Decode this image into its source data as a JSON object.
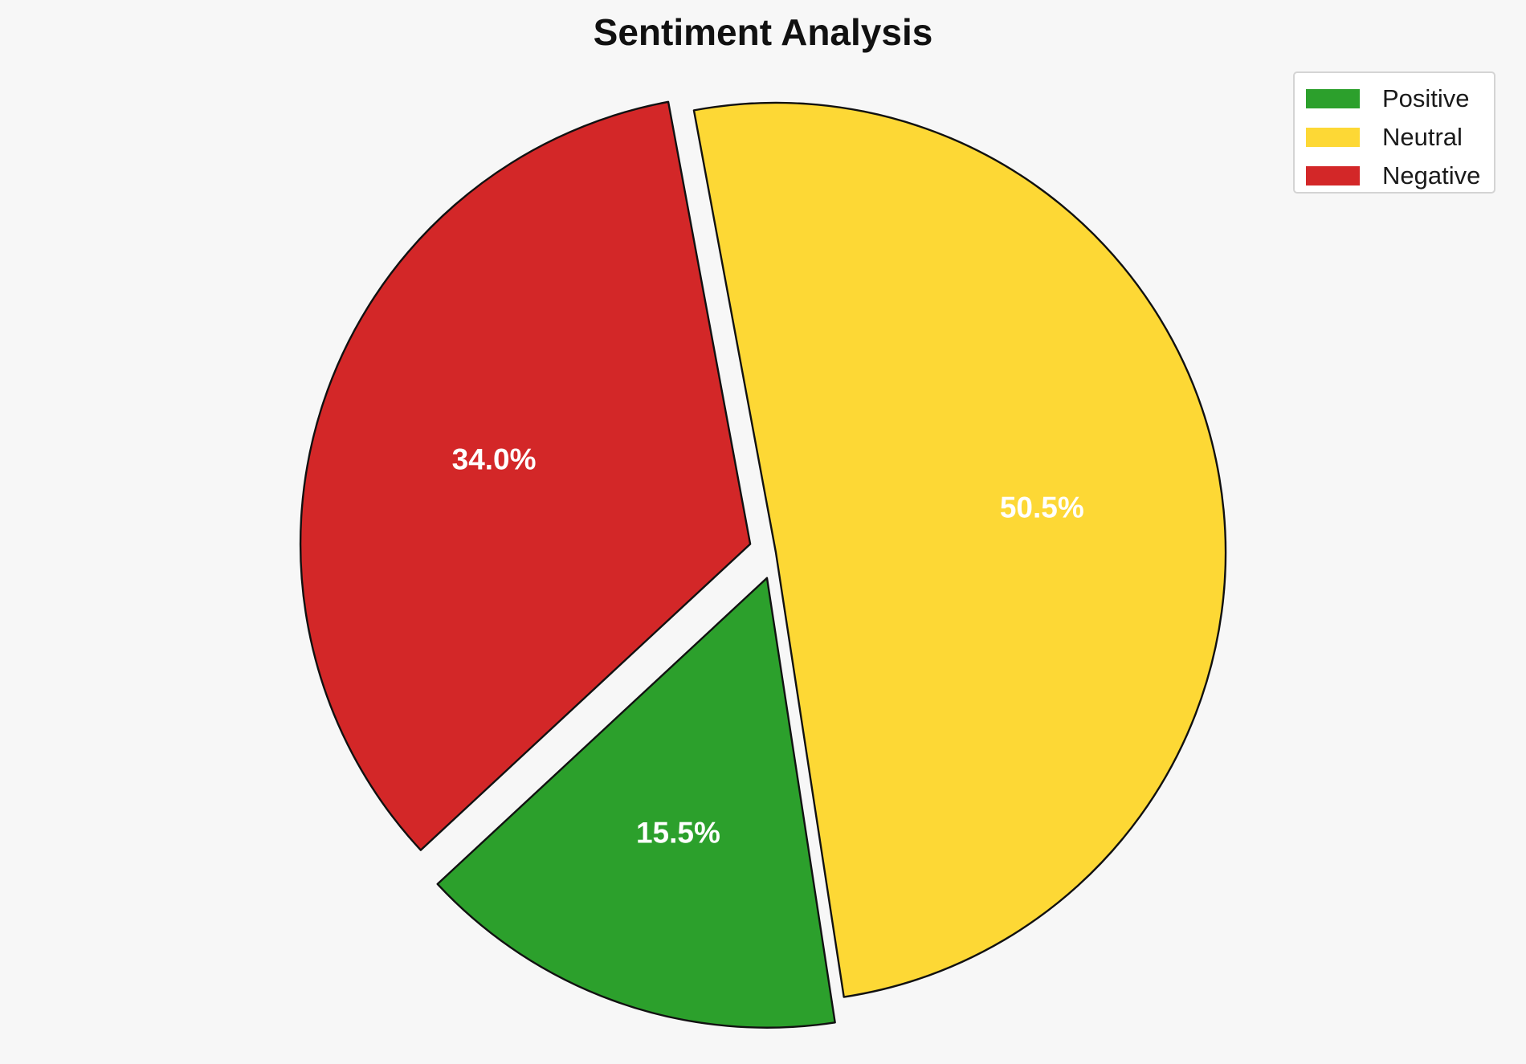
{
  "chart_data": {
    "type": "pie",
    "title": "Sentiment Analysis",
    "categories": [
      "Positive",
      "Neutral",
      "Negative"
    ],
    "values": [
      15.5,
      50.5,
      34.0
    ],
    "labels": [
      "15.5%",
      "50.5%",
      "34.0%"
    ],
    "colors": [
      "#2ca02c",
      "#fdd835",
      "#d32728"
    ],
    "exploded": [
      true,
      false,
      true
    ],
    "legend": {
      "position": "top-right",
      "entries": [
        "Positive",
        "Neutral",
        "Negative"
      ]
    },
    "edge_color": "#111111"
  }
}
